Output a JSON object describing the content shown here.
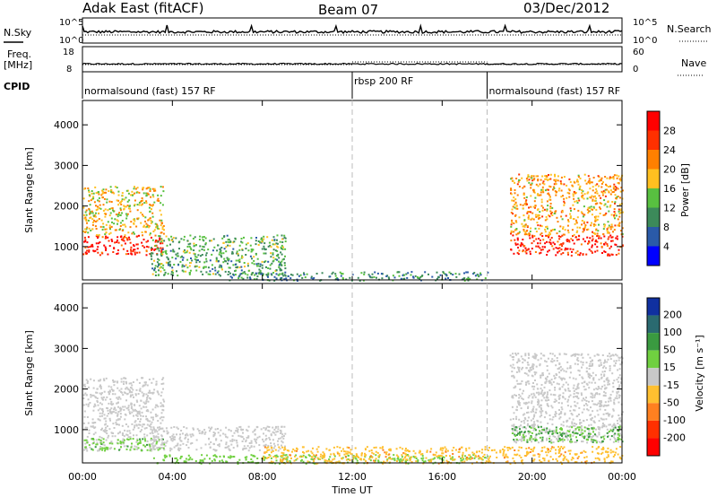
{
  "header": {
    "station": "Adak East (fitACF)",
    "beam": "Beam 07",
    "date": "03/Dec/2012"
  },
  "noise_panel": {
    "left_label": "N.Sky",
    "right_label": "N.Search",
    "left_ticks": [
      "10^5",
      "10^0"
    ],
    "right_ticks": [
      "10^5",
      "10^0"
    ]
  },
  "freq_panel": {
    "left_label_1": "Freq.",
    "left_label_2": "[MHz]",
    "right_label": "Nave",
    "left_ticks": [
      "18",
      "8"
    ],
    "right_ticks": [
      "60",
      "0"
    ]
  },
  "cpid": {
    "label": "CPID",
    "segments": [
      {
        "name": "normalsound (fast) 157 RF",
        "start_hour": 0,
        "end_hour": 12
      },
      {
        "name": "rbsp 200 RF",
        "start_hour": 12,
        "end_hour": 18
      },
      {
        "name": "normalsound (fast) 157 RF",
        "start_hour": 18,
        "end_hour": 24
      }
    ]
  },
  "power_panel": {
    "ylabel": "Slant Range [km]",
    "yticks": [
      "4000",
      "3000",
      "2000",
      "1000"
    ],
    "colorbar_label": "Power [dB]",
    "colorbar_ticks": [
      "28",
      "24",
      "20",
      "16",
      "12",
      "8",
      "4"
    ],
    "colors": [
      "#0000ff",
      "#2a5aa8",
      "#3c8a5a",
      "#58c040",
      "#ffc020",
      "#ff8000",
      "#ff3000",
      "#ff0000"
    ]
  },
  "velocity_panel": {
    "ylabel": "Slant Range [km]",
    "yticks": [
      "4000",
      "3000",
      "2000",
      "1000"
    ],
    "colorbar_label": "Velocity [m s⁻¹]",
    "colorbar_ticks": [
      "200",
      "100",
      "50",
      "15",
      "-15",
      "-50",
      "-100",
      "-200"
    ],
    "colors": [
      "#1030a0",
      "#2a6a70",
      "#3a9a40",
      "#70d040",
      "#c8c8c8",
      "#ffc030",
      "#ff8020",
      "#ff3000",
      "#ff0000"
    ]
  },
  "xaxis": {
    "label": "Time UT",
    "ticks": [
      "00:00",
      "04:00",
      "08:00",
      "12:00",
      "16:00",
      "20:00",
      "00:00"
    ]
  },
  "chart_data": {
    "type": "heatmap",
    "title": "Adak East (fitACF)",
    "xlabel": "Time UT",
    "ylabel": "Slant Range [km]",
    "xlim_hours": [
      0,
      24
    ],
    "ylim_km": [
      180,
      4600
    ],
    "power_echo_regions": [
      {
        "t0": 0.0,
        "t1": 3.6,
        "r0": 800,
        "r1": 1300,
        "level_db": 28
      },
      {
        "t0": 0.0,
        "t1": 3.6,
        "r0": 1300,
        "r1": 2500,
        "level_db": 18
      },
      {
        "t0": 3.0,
        "t1": 9.0,
        "r0": 300,
        "r1": 1300,
        "level_db": 12
      },
      {
        "t0": 6.5,
        "t1": 18.0,
        "r0": 180,
        "r1": 400,
        "level_db": 10
      },
      {
        "t0": 19.0,
        "t1": 24.0,
        "r0": 800,
        "r1": 1300,
        "level_db": 28
      },
      {
        "t0": 19.0,
        "t1": 24.0,
        "r0": 1300,
        "r1": 2800,
        "level_db": 20
      }
    ],
    "velocity_echo_regions": [
      {
        "t0": 0.0,
        "t1": 3.6,
        "r0": 500,
        "r1": 2300,
        "velocity": 0
      },
      {
        "t0": 0.0,
        "t1": 3.6,
        "r0": 500,
        "r1": 800,
        "velocity": 40
      },
      {
        "t0": 3.0,
        "t1": 9.0,
        "r0": 500,
        "r1": 1100,
        "velocity": 0
      },
      {
        "t0": 3.0,
        "t1": 18.0,
        "r0": 180,
        "r1": 400,
        "velocity": 30
      },
      {
        "t0": 8.0,
        "t1": 24.0,
        "r0": 180,
        "r1": 600,
        "velocity": -40
      },
      {
        "t0": 19.0,
        "t1": 24.0,
        "r0": 700,
        "r1": 2900,
        "velocity": 0
      },
      {
        "t0": 19.0,
        "t1": 24.0,
        "r0": 700,
        "r1": 1100,
        "velocity": 50
      }
    ]
  }
}
